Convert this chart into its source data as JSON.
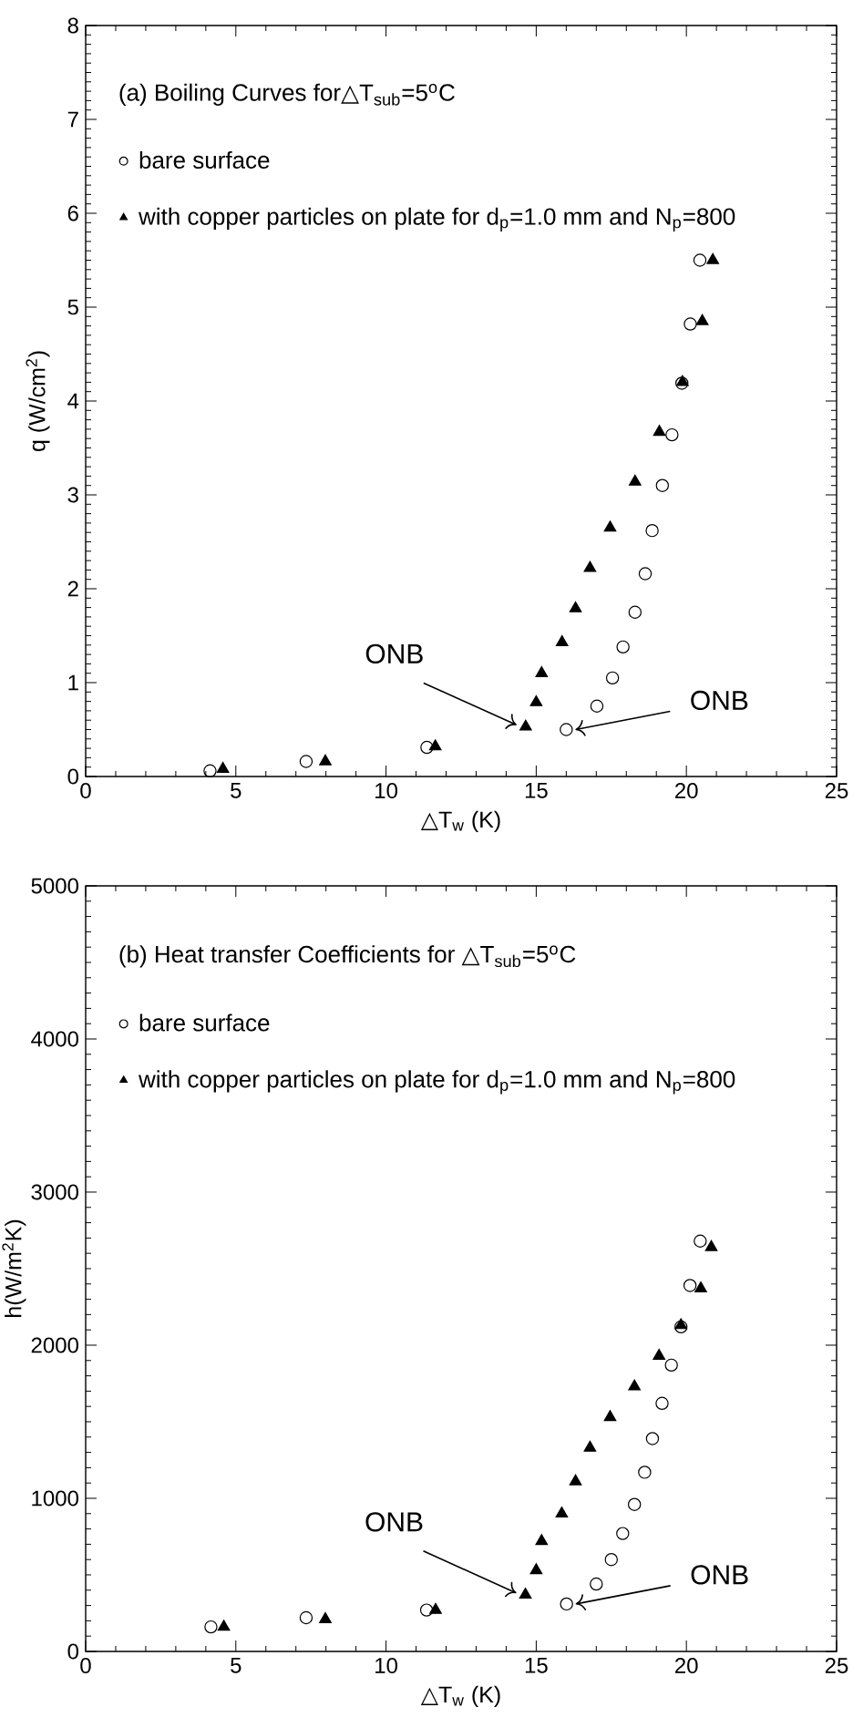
{
  "chart_data": [
    {
      "type": "scatter",
      "title": "(a) Boiling Curves for△T$_{sub}$=5$^{o}$C",
      "xlabel": "△T$_{w}$ (K)",
      "ylabel": "q (W/cm$^{2}$)",
      "xlim": [
        0,
        25
      ],
      "ylim": [
        0,
        8
      ],
      "xticks": [
        0,
        5,
        10,
        15,
        20,
        25
      ],
      "yticks": [
        0,
        1,
        2,
        3,
        4,
        5,
        6,
        7,
        8
      ],
      "legend": "top left",
      "series": [
        {
          "name": "bare surface",
          "color": "#000000",
          "marker": "circle",
          "x": [
            4.14,
            7.34,
            11.36,
            16.0,
            17.02,
            17.54,
            17.89,
            18.29,
            18.63,
            18.86,
            19.2,
            19.52,
            19.85,
            20.13,
            20.45
          ],
          "values": [
            0.06,
            0.16,
            0.31,
            0.5,
            0.75,
            1.05,
            1.38,
            1.75,
            2.16,
            2.62,
            3.1,
            3.64,
            4.19,
            4.82,
            5.5
          ]
        },
        {
          "name": "with copper particles on plate for d$_{p}$=1.0 mm and N$_{p}$=800",
          "color": "#000000",
          "marker": "triangle",
          "x": [
            4.57,
            7.98,
            11.64,
            14.65,
            15.0,
            15.18,
            15.86,
            16.31,
            16.79,
            17.46,
            18.29,
            19.1,
            19.87,
            20.53,
            20.88
          ],
          "values": [
            0.08,
            0.16,
            0.32,
            0.53,
            0.79,
            1.1,
            1.43,
            1.79,
            2.22,
            2.65,
            3.14,
            3.67,
            4.2,
            4.85,
            5.5
          ]
        }
      ],
      "annotations": [
        {
          "text": "ONB",
          "x": 14.65,
          "y": 0.53
        },
        {
          "text": "ONB",
          "x": 16.0,
          "y": 0.5
        }
      ]
    },
    {
      "type": "scatter",
      "title": "(b) Heat transfer Coefficients for △T$_{sub}$=5$^{o}$C",
      "xlabel": "△T$_{w}$ (K)",
      "ylabel": "h(W/m$^{2}$K)",
      "xlim": [
        0,
        25
      ],
      "ylim": [
        0,
        5000
      ],
      "xticks": [
        0,
        5,
        10,
        15,
        20,
        25
      ],
      "yticks": [
        0,
        1000,
        2000,
        3000,
        4000,
        5000
      ],
      "legend": "top left",
      "series": [
        {
          "name": "bare surface",
          "color": "#000000",
          "marker": "circle",
          "x": [
            4.17,
            7.34,
            11.35,
            16.01,
            17.0,
            17.5,
            17.88,
            18.27,
            18.61,
            18.87,
            19.19,
            19.5,
            19.82,
            20.12,
            20.46
          ],
          "values": [
            160,
            220,
            270,
            310,
            440,
            600,
            770,
            960,
            1170,
            1390,
            1620,
            1870,
            2120,
            2390,
            2680
          ]
        },
        {
          "name": "with copper particles on plate for d$_{p}$=1.0 mm and N$_{p}$=800",
          "color": "#000000",
          "marker": "triangle",
          "x": [
            4.6,
            7.98,
            11.65,
            14.64,
            15.0,
            15.18,
            15.85,
            16.31,
            16.79,
            17.46,
            18.27,
            19.09,
            19.82,
            20.48,
            20.83
          ],
          "values": [
            160,
            210,
            270,
            370,
            530,
            720,
            900,
            1110,
            1330,
            1530,
            1730,
            1930,
            2130,
            2370,
            2640
          ]
        }
      ],
      "annotations": [
        {
          "text": "ONB",
          "x": 14.64,
          "y": 370
        },
        {
          "text": "ONB",
          "x": 16.01,
          "y": 310
        }
      ]
    }
  ]
}
